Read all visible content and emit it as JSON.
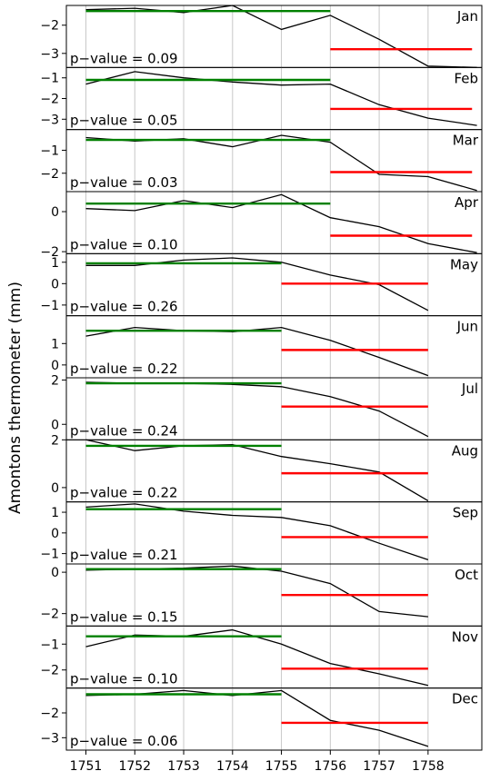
{
  "chart_data": {
    "type": "line",
    "ylabel": "Amontons thermometer (mm)",
    "x_ticks": [
      1751,
      1752,
      1753,
      1754,
      1755,
      1756,
      1757,
      1758
    ],
    "x": [
      1751,
      1752,
      1753,
      1754,
      1755,
      1756,
      1757,
      1758,
      1759
    ],
    "xlim": [
      1750.6,
      1759.1
    ],
    "grid": "vertical",
    "colors": {
      "series": "#000000",
      "mean_before": "#008000",
      "mean_after": "#ff0000"
    },
    "panels": [
      {
        "month": "Jan",
        "pvalue_label": "p−value = 0.09",
        "ylim": [
          -3.5,
          -1.3
        ],
        "yticks": [
          -2,
          -3
        ],
        "values": [
          -1.45,
          -1.4,
          -1.55,
          -1.3,
          -2.15,
          -1.65,
          -2.5,
          -3.45,
          -3.5
        ],
        "mean_before": {
          "value": -1.5,
          "x_start": 1751,
          "x_end": 1756
        },
        "mean_after": {
          "value": -2.85,
          "x_start": 1756,
          "x_end": 1758.9
        }
      },
      {
        "month": "Feb",
        "pvalue_label": "p−value = 0.05",
        "ylim": [
          -3.5,
          -0.5
        ],
        "yticks": [
          -1,
          -2,
          -3
        ],
        "values": [
          -1.3,
          -0.7,
          -1.0,
          -1.2,
          -1.35,
          -1.3,
          -2.3,
          -2.95,
          -3.3
        ],
        "mean_before": {
          "value": -1.1,
          "x_start": 1751,
          "x_end": 1756
        },
        "mean_after": {
          "value": -2.5,
          "x_start": 1756,
          "x_end": 1758.9
        }
      },
      {
        "month": "Mar",
        "pvalue_label": "p−value = 0.03",
        "ylim": [
          -2.8,
          -0.1
        ],
        "yticks": [
          -1,
          -2
        ],
        "values": [
          -0.45,
          -0.6,
          -0.5,
          -0.85,
          -0.35,
          -0.65,
          -2.05,
          -2.15,
          -2.75
        ],
        "mean_before": {
          "value": -0.55,
          "x_start": 1751,
          "x_end": 1756
        },
        "mean_after": {
          "value": -1.95,
          "x_start": 1756,
          "x_end": 1758.9
        }
      },
      {
        "month": "Apr",
        "pvalue_label": "p−value = 0.10",
        "ylim": [
          -2.1,
          1.0
        ],
        "yticks": [
          0,
          -2
        ],
        "values": [
          0.15,
          0.05,
          0.55,
          0.2,
          0.85,
          -0.3,
          -0.75,
          -1.6,
          -2.05
        ],
        "mean_before": {
          "value": 0.4,
          "x_start": 1751,
          "x_end": 1756
        },
        "mean_after": {
          "value": -1.2,
          "x_start": 1756,
          "x_end": 1758.9
        }
      },
      {
        "month": "May",
        "pvalue_label": "p−value = 0.26",
        "ylim": [
          -1.5,
          1.4
        ],
        "yticks": [
          1,
          0,
          -1
        ],
        "values": [
          0.85,
          0.85,
          1.1,
          1.2,
          1.0,
          0.4,
          -0.05,
          -1.25
        ],
        "mean_before": {
          "value": 0.95,
          "x_start": 1751,
          "x_end": 1755
        },
        "mean_after": {
          "value": 0.0,
          "x_start": 1755,
          "x_end": 1758
        }
      },
      {
        "month": "Jun",
        "pvalue_label": "p−value = 0.22",
        "ylim": [
          -0.6,
          2.3
        ],
        "yticks": [
          1,
          0
        ],
        "values": [
          1.35,
          1.75,
          1.6,
          1.55,
          1.75,
          1.15,
          0.35,
          -0.5
        ],
        "mean_before": {
          "value": 1.6,
          "x_start": 1751,
          "x_end": 1755
        },
        "mean_after": {
          "value": 0.7,
          "x_start": 1755,
          "x_end": 1758
        }
      },
      {
        "month": "Jul",
        "pvalue_label": "p−value = 0.24",
        "ylim": [
          -0.7,
          2.1
        ],
        "yticks": [
          2,
          0
        ],
        "values": [
          1.9,
          1.85,
          1.85,
          1.8,
          1.7,
          1.25,
          0.6,
          -0.55
        ],
        "mean_before": {
          "value": 1.85,
          "x_start": 1751,
          "x_end": 1755
        },
        "mean_after": {
          "value": 0.8,
          "x_start": 1755,
          "x_end": 1758
        }
      },
      {
        "month": "Aug",
        "pvalue_label": "p−value = 0.22",
        "ylim": [
          -0.6,
          2.0
        ],
        "yticks": [
          2,
          0
        ],
        "values": [
          2.0,
          1.55,
          1.75,
          1.8,
          1.3,
          1.0,
          0.65,
          -0.55
        ],
        "mean_before": {
          "value": 1.75,
          "x_start": 1751,
          "x_end": 1755
        },
        "mean_after": {
          "value": 0.6,
          "x_start": 1755,
          "x_end": 1758
        }
      },
      {
        "month": "Sep",
        "pvalue_label": "p−value = 0.21",
        "ylim": [
          -1.5,
          1.5
        ],
        "yticks": [
          1,
          0,
          -1
        ],
        "values": [
          1.25,
          1.4,
          1.05,
          0.85,
          0.75,
          0.35,
          -0.5,
          -1.3
        ],
        "mean_before": {
          "value": 1.15,
          "x_start": 1751,
          "x_end": 1755
        },
        "mean_after": {
          "value": -0.2,
          "x_start": 1755,
          "x_end": 1758
        }
      },
      {
        "month": "Oct",
        "pvalue_label": "p−value = 0.15",
        "ylim": [
          -2.6,
          0.4
        ],
        "yticks": [
          0,
          -2
        ],
        "values": [
          0.1,
          0.15,
          0.2,
          0.3,
          0.05,
          -0.55,
          -1.9,
          -2.15
        ],
        "mean_before": {
          "value": 0.15,
          "x_start": 1751,
          "x_end": 1755
        },
        "mean_after": {
          "value": -1.1,
          "x_start": 1755,
          "x_end": 1758
        }
      },
      {
        "month": "Nov",
        "pvalue_label": "p−value = 0.10",
        "ylim": [
          -2.7,
          -0.3
        ],
        "yticks": [
          -1,
          -2
        ],
        "values": [
          -1.1,
          -0.65,
          -0.7,
          -0.45,
          -1.0,
          -1.75,
          -2.15,
          -2.6
        ],
        "mean_before": {
          "value": -0.7,
          "x_start": 1751,
          "x_end": 1755
        },
        "mean_after": {
          "value": -1.95,
          "x_start": 1755,
          "x_end": 1758
        }
      },
      {
        "month": "Dec",
        "pvalue_label": "p−value = 0.06",
        "ylim": [
          -3.5,
          -1.0
        ],
        "yticks": [
          -2,
          -3
        ],
        "values": [
          -1.3,
          -1.25,
          -1.1,
          -1.3,
          -1.1,
          -2.3,
          -2.7,
          -3.35
        ],
        "mean_before": {
          "value": -1.25,
          "x_start": 1751,
          "x_end": 1755
        },
        "mean_after": {
          "value": -2.4,
          "x_start": 1755,
          "x_end": 1758
        }
      }
    ]
  }
}
